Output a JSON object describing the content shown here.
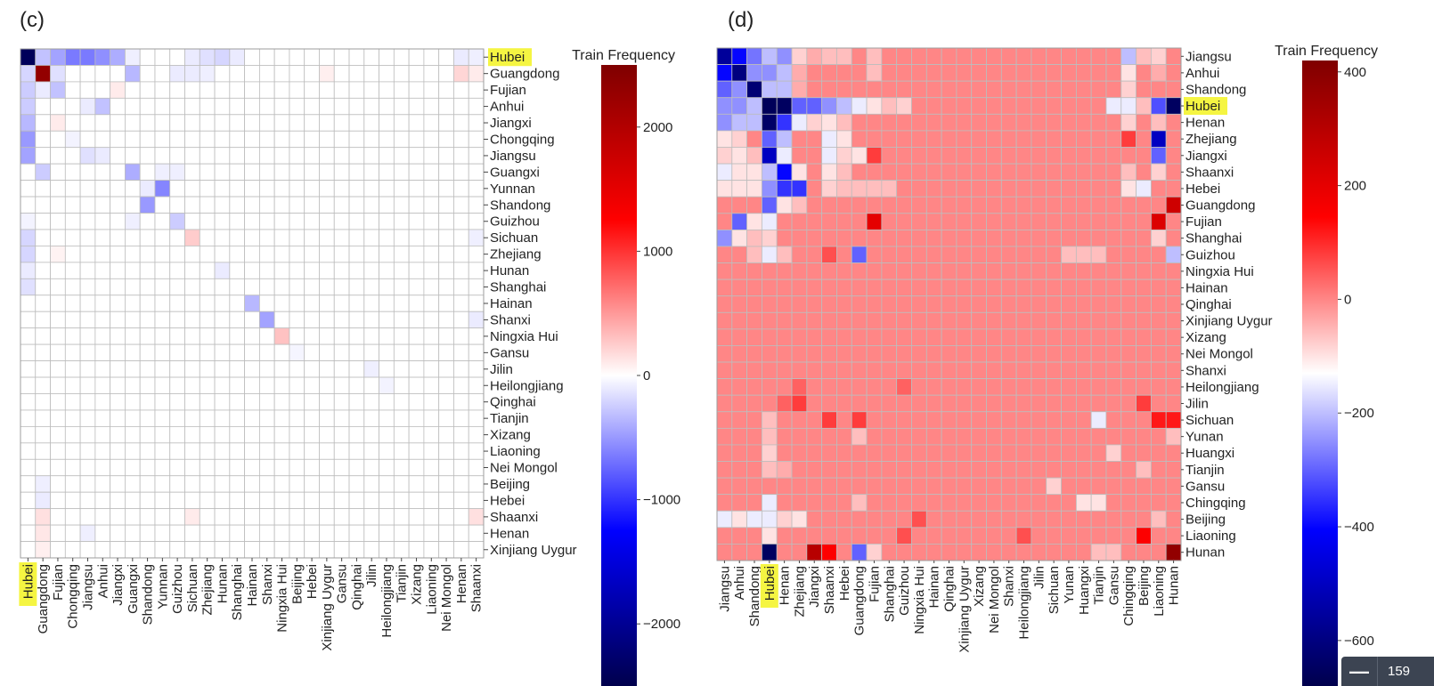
{
  "figure": {
    "panel_c": {
      "label": "(c)",
      "colorbar_title": "Train Frequency",
      "highlighted": "Hubei",
      "highlight_color": "#f5f542"
    },
    "panel_d": {
      "label": "(d)",
      "colorbar_title": "Train Frequency",
      "highlighted": "Hubei",
      "highlight_color": "#f5f542"
    }
  },
  "zoom_widget": {
    "minus": "—",
    "value": "159"
  },
  "chart_data": [
    {
      "type": "heatmap",
      "panel": "(c)",
      "title": "",
      "colorbar_label": "Train Frequency",
      "colormap": "seismic",
      "vmin": -2500,
      "vmax": 2500,
      "colorbar_ticks": [
        2000,
        1000,
        0,
        -1000,
        -2000
      ],
      "row_labels": [
        "Hubei",
        "Guangdong",
        "Fujian",
        "Anhui",
        "Jiangxi",
        "Chongqing",
        "Jiangsu",
        "Guangxi",
        "Yunnan",
        "Shandong",
        "Guizhou",
        "Sichuan",
        "Zhejiang",
        "Hunan",
        "Shanghai",
        "Hainan",
        "Shanxi",
        "Ningxia Hui",
        "Gansu",
        "Jilin",
        "Heilongjiang",
        "Qinghai",
        "Tianjin",
        "Xizang",
        "Liaoning",
        "Nei Mongol",
        "Beijing",
        "Hebei",
        "Shaanxi",
        "Henan",
        "Xinjiang Uygur"
      ],
      "col_labels": [
        "Hubei",
        "Guangdong",
        "Fujian",
        "Chongqing",
        "Jiangsu",
        "Anhui",
        "Jiangxi",
        "Guangxi",
        "Shandong",
        "Yunnan",
        "Guizhou",
        "Sichuan",
        "Zhejiang",
        "Hunan",
        "Shanghai",
        "Hainan",
        "Shanxi",
        "Ningxia Hui",
        "Beijing",
        "Hebei",
        "Xinjiang Uygur",
        "Gansu",
        "Qinghai",
        "Jilin",
        "Heilongjiang",
        "Tianjin",
        "Xizang",
        "Liaoning",
        "Nei Mongol",
        "Henan",
        "Shaanxi"
      ],
      "cells": [
        [
          0,
          0,
          -2400
        ],
        [
          0,
          1,
          -300
        ],
        [
          0,
          2,
          -450
        ],
        [
          0,
          3,
          -650
        ],
        [
          0,
          4,
          -650
        ],
        [
          0,
          5,
          -550
        ],
        [
          0,
          6,
          -400
        ],
        [
          0,
          7,
          -80
        ],
        [
          0,
          11,
          -100
        ],
        [
          0,
          12,
          -150
        ],
        [
          0,
          13,
          -200
        ],
        [
          0,
          14,
          -100
        ],
        [
          0,
          29,
          -100
        ],
        [
          0,
          30,
          -80
        ],
        [
          1,
          0,
          -200
        ],
        [
          1,
          1,
          2300
        ],
        [
          1,
          2,
          -150
        ],
        [
          1,
          7,
          -350
        ],
        [
          1,
          10,
          -100
        ],
        [
          1,
          11,
          -100
        ],
        [
          1,
          12,
          -80
        ],
        [
          1,
          20,
          80
        ],
        [
          1,
          29,
          200
        ],
        [
          1,
          30,
          100
        ],
        [
          2,
          0,
          -250
        ],
        [
          2,
          2,
          -300
        ],
        [
          2,
          1,
          -100
        ],
        [
          2,
          6,
          100
        ],
        [
          3,
          0,
          -250
        ],
        [
          3,
          5,
          -300
        ],
        [
          3,
          4,
          -100
        ],
        [
          4,
          0,
          -350
        ],
        [
          4,
          2,
          100
        ],
        [
          5,
          0,
          -500
        ],
        [
          5,
          3,
          -60
        ],
        [
          6,
          0,
          -450
        ],
        [
          6,
          4,
          -150
        ],
        [
          6,
          5,
          -100
        ],
        [
          7,
          1,
          -250
        ],
        [
          7,
          7,
          -400
        ],
        [
          7,
          9,
          -80
        ],
        [
          7,
          10,
          -80
        ],
        [
          8,
          8,
          -100
        ],
        [
          8,
          9,
          -600
        ],
        [
          9,
          8,
          -500
        ],
        [
          10,
          0,
          -60
        ],
        [
          10,
          7,
          -80
        ],
        [
          10,
          10,
          -250
        ],
        [
          11,
          0,
          -200
        ],
        [
          11,
          11,
          250
        ],
        [
          11,
          30,
          -80
        ],
        [
          12,
          0,
          -200
        ],
        [
          12,
          2,
          60
        ],
        [
          13,
          0,
          -100
        ],
        [
          13,
          13,
          -100
        ],
        [
          14,
          0,
          -150
        ],
        [
          15,
          15,
          -350
        ],
        [
          16,
          16,
          -450
        ],
        [
          16,
          30,
          -100
        ],
        [
          17,
          17,
          300
        ],
        [
          18,
          18,
          -50
        ],
        [
          19,
          23,
          -80
        ],
        [
          20,
          24,
          -60
        ],
        [
          26,
          1,
          -80
        ],
        [
          27,
          1,
          -100
        ],
        [
          28,
          1,
          150
        ],
        [
          28,
          11,
          100
        ],
        [
          28,
          30,
          150
        ],
        [
          29,
          1,
          120
        ],
        [
          29,
          4,
          -80
        ],
        [
          30,
          1,
          80
        ]
      ]
    },
    {
      "type": "heatmap",
      "panel": "(d)",
      "title": "",
      "colorbar_label": "Train Frequency",
      "colormap": "seismic",
      "vmin": -680,
      "vmax": 420,
      "colorbar_ticks": [
        400,
        200,
        0,
        -200,
        -400,
        -600
      ],
      "row_labels": [
        "Jiangsu",
        "Anhui",
        "Shandong",
        "Hubei",
        "Henan",
        "Zhejiang",
        "Jiangxi",
        "Shaanxi",
        "Hebei",
        "Guangdong",
        "Fujian",
        "Shanghai",
        "Guizhou",
        "Ningxia Hui",
        "Hainan",
        "Qinghai",
        "Xinjiang Uygur",
        "Xizang",
        "Nei Mongol",
        "Shanxi",
        "Heilongjiang",
        "Jilin",
        "Sichuan",
        "Yunan",
        "Huangxi",
        "Tianjin",
        "Gansu",
        "Chingqing",
        "Beijing",
        "Liaoning",
        "Hunan"
      ],
      "col_labels": [
        "Jiangsu",
        "Anhui",
        "Shandong",
        "Hubei",
        "Henan",
        "Zhejiang",
        "Jiangxi",
        "Shaanxi",
        "Hebei",
        "Guangdong",
        "Fujian",
        "Shanghai",
        "Guizhou",
        "Ningxia Hui",
        "Hainan",
        "Qinghai",
        "Xinjiang Uygur",
        "Xizang",
        "Nei Mongol",
        "Shanxi",
        "Heilongjiang",
        "Jilin",
        "Sichuan",
        "Yunan",
        "Huangxi",
        "Tianjin",
        "Gansu",
        "Chingqing",
        "Beijing",
        "Liaoning",
        "Hunan"
      ],
      "cells": [
        [
          0,
          0,
          -560
        ],
        [
          0,
          1,
          -400
        ],
        [
          0,
          2,
          -280
        ],
        [
          0,
          3,
          -200
        ],
        [
          0,
          4,
          -250
        ],
        [
          0,
          5,
          -80
        ],
        [
          0,
          6,
          -40
        ],
        [
          0,
          7,
          -60
        ],
        [
          0,
          8,
          -60
        ],
        [
          0,
          10,
          -60
        ],
        [
          0,
          27,
          -200
        ],
        [
          0,
          28,
          -60
        ],
        [
          0,
          29,
          -80
        ],
        [
          1,
          0,
          -400
        ],
        [
          1,
          1,
          -600
        ],
        [
          1,
          2,
          -250
        ],
        [
          1,
          3,
          -250
        ],
        [
          1,
          4,
          -200
        ],
        [
          1,
          5,
          -40
        ],
        [
          1,
          10,
          -60
        ],
        [
          1,
          27,
          -100
        ],
        [
          1,
          29,
          -40
        ],
        [
          2,
          0,
          -300
        ],
        [
          2,
          1,
          -250
        ],
        [
          2,
          2,
          -620
        ],
        [
          2,
          3,
          -200
        ],
        [
          2,
          4,
          -200
        ],
        [
          2,
          5,
          -40
        ],
        [
          2,
          27,
          -80
        ],
        [
          3,
          0,
          -250
        ],
        [
          3,
          1,
          -250
        ],
        [
          3,
          2,
          -200
        ],
        [
          3,
          3,
          -660
        ],
        [
          3,
          4,
          -650
        ],
        [
          3,
          5,
          -300
        ],
        [
          3,
          6,
          -300
        ],
        [
          3,
          7,
          -250
        ],
        [
          3,
          8,
          -200
        ],
        [
          3,
          9,
          -150
        ],
        [
          3,
          10,
          -100
        ],
        [
          3,
          11,
          -60
        ],
        [
          3,
          12,
          -80
        ],
        [
          3,
          26,
          -150
        ],
        [
          3,
          27,
          -150
        ],
        [
          3,
          28,
          -60
        ],
        [
          3,
          29,
          -320
        ],
        [
          3,
          30,
          -650
        ],
        [
          4,
          0,
          -250
        ],
        [
          4,
          1,
          -200
        ],
        [
          4,
          2,
          -200
        ],
        [
          4,
          3,
          -640
        ],
        [
          4,
          4,
          -350
        ],
        [
          4,
          5,
          -150
        ],
        [
          4,
          6,
          -80
        ],
        [
          4,
          7,
          -100
        ],
        [
          4,
          8,
          -60
        ],
        [
          4,
          27,
          -80
        ],
        [
          4,
          29,
          -60
        ],
        [
          5,
          0,
          -100
        ],
        [
          5,
          1,
          -80
        ],
        [
          5,
          3,
          -300
        ],
        [
          5,
          4,
          -200
        ],
        [
          5,
          7,
          -150
        ],
        [
          5,
          8,
          -100
        ],
        [
          5,
          27,
          80
        ],
        [
          5,
          29,
          -500
        ],
        [
          6,
          0,
          -80
        ],
        [
          6,
          1,
          -100
        ],
        [
          6,
          2,
          -60
        ],
        [
          6,
          3,
          -500
        ],
        [
          6,
          4,
          -150
        ],
        [
          6,
          7,
          -150
        ],
        [
          6,
          8,
          -80
        ],
        [
          6,
          9,
          -100
        ],
        [
          6,
          10,
          80
        ],
        [
          6,
          29,
          -300
        ],
        [
          7,
          0,
          -150
        ],
        [
          7,
          1,
          -100
        ],
        [
          7,
          2,
          -100
        ],
        [
          7,
          3,
          -200
        ],
        [
          7,
          4,
          -400
        ],
        [
          7,
          5,
          -100
        ],
        [
          7,
          7,
          -100
        ],
        [
          7,
          8,
          -60
        ],
        [
          7,
          27,
          -60
        ],
        [
          7,
          29,
          -80
        ],
        [
          8,
          0,
          -100
        ],
        [
          8,
          1,
          -100
        ],
        [
          8,
          2,
          -100
        ],
        [
          8,
          3,
          -250
        ],
        [
          8,
          4,
          -350
        ],
        [
          8,
          5,
          -350
        ],
        [
          8,
          7,
          -80
        ],
        [
          8,
          8,
          -60
        ],
        [
          8,
          9,
          -60
        ],
        [
          8,
          10,
          -60
        ],
        [
          8,
          11,
          -60
        ],
        [
          8,
          27,
          -100
        ],
        [
          8,
          28,
          -150
        ],
        [
          9,
          3,
          -300
        ],
        [
          9,
          4,
          -100
        ],
        [
          9,
          5,
          -60
        ],
        [
          9,
          30,
          250
        ],
        [
          10,
          1,
          -300
        ],
        [
          10,
          2,
          -100
        ],
        [
          10,
          3,
          -150
        ],
        [
          10,
          10,
          200
        ],
        [
          10,
          29,
          220
        ],
        [
          11,
          0,
          -250
        ],
        [
          11,
          1,
          -100
        ],
        [
          11,
          2,
          -60
        ],
        [
          11,
          3,
          -80
        ],
        [
          11,
          29,
          -80
        ],
        [
          12,
          2,
          -60
        ],
        [
          12,
          3,
          -150
        ],
        [
          12,
          4,
          -60
        ],
        [
          12,
          7,
          60
        ],
        [
          12,
          9,
          -300
        ],
        [
          12,
          23,
          -60
        ],
        [
          12,
          24,
          -60
        ],
        [
          12,
          25,
          -60
        ],
        [
          12,
          30,
          -200
        ],
        [
          20,
          5,
          40
        ],
        [
          20,
          12,
          40
        ],
        [
          21,
          4,
          40
        ],
        [
          21,
          5,
          80
        ],
        [
          21,
          28,
          80
        ],
        [
          22,
          3,
          -60
        ],
        [
          22,
          7,
          80
        ],
        [
          22,
          9,
          80
        ],
        [
          22,
          25,
          -150
        ],
        [
          22,
          29,
          120
        ],
        [
          22,
          30,
          120
        ],
        [
          23,
          3,
          -60
        ],
        [
          23,
          9,
          -60
        ],
        [
          23,
          30,
          -60
        ],
        [
          24,
          3,
          -80
        ],
        [
          24,
          26,
          -80
        ],
        [
          25,
          3,
          -60
        ],
        [
          25,
          4,
          -40
        ],
        [
          25,
          28,
          -60
        ],
        [
          26,
          22,
          -80
        ],
        [
          27,
          3,
          -150
        ],
        [
          27,
          9,
          -60
        ],
        [
          27,
          24,
          -100
        ],
        [
          27,
          25,
          -100
        ],
        [
          28,
          0,
          -150
        ],
        [
          28,
          1,
          -100
        ],
        [
          28,
          2,
          -150
        ],
        [
          28,
          3,
          -150
        ],
        [
          28,
          4,
          -80
        ],
        [
          28,
          5,
          -100
        ],
        [
          28,
          13,
          60
        ],
        [
          28,
          29,
          -60
        ],
        [
          29,
          3,
          -100
        ],
        [
          29,
          12,
          60
        ],
        [
          29,
          20,
          60
        ],
        [
          29,
          28,
          150
        ],
        [
          30,
          3,
          -650
        ],
        [
          30,
          6,
          300
        ],
        [
          30,
          7,
          150
        ],
        [
          30,
          9,
          -300
        ],
        [
          30,
          10,
          -80
        ],
        [
          30,
          25,
          -60
        ],
        [
          30,
          26,
          -60
        ],
        [
          30,
          30,
          380
        ]
      ]
    }
  ]
}
